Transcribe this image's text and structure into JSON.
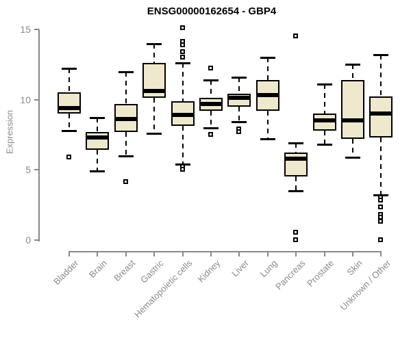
{
  "chart_data": {
    "type": "boxplot",
    "title": "ENSG00000162654 - GBP4",
    "xlabel": "",
    "ylabel": "Expression",
    "ylim": [
      0,
      15
    ],
    "yticks": [
      0,
      5,
      10,
      15
    ],
    "grid": false,
    "legend": "none",
    "box_fill_color": "#EEE8CD",
    "box_border_color": "#000000",
    "axis_color": "#888888",
    "axis_text_color": "#8A8A8A",
    "categories": [
      "Bladder",
      "Brain",
      "Breast",
      "Gastric",
      "Hematopoietic cells",
      "Kidney",
      "Liver",
      "Lung",
      "Pancreas",
      "Prostate",
      "Skin",
      "Unknown / Other"
    ],
    "series": [
      {
        "name": "Bladder",
        "whisker_low": 7.8,
        "q1": 9.0,
        "median": 9.4,
        "q3": 10.5,
        "whisker_high": 12.2,
        "outliers": [
          5.9
        ]
      },
      {
        "name": "Brain",
        "whisker_low": 4.9,
        "q1": 6.4,
        "median": 7.3,
        "q3": 7.7,
        "whisker_high": 8.7,
        "outliers": []
      },
      {
        "name": "Breast",
        "whisker_low": 6.0,
        "q1": 7.7,
        "median": 8.6,
        "q3": 9.7,
        "whisker_high": 12.0,
        "outliers": [
          4.1
        ]
      },
      {
        "name": "Gastric",
        "whisker_low": 7.6,
        "q1": 10.1,
        "median": 10.6,
        "q3": 12.6,
        "whisker_high": 14.0,
        "outliers": []
      },
      {
        "name": "Hematopoietic cells",
        "whisker_low": 5.4,
        "q1": 8.1,
        "median": 8.9,
        "q3": 9.9,
        "whisker_high": 12.6,
        "outliers": [
          15.1,
          14.1,
          13.9,
          13.4,
          13.0,
          5.2,
          5.0
        ]
      },
      {
        "name": "Kidney",
        "whisker_low": 8.0,
        "q1": 9.2,
        "median": 9.7,
        "q3": 10.1,
        "whisker_high": 11.4,
        "outliers": [
          12.2,
          7.5
        ]
      },
      {
        "name": "Liver",
        "whisker_low": 8.4,
        "q1": 9.5,
        "median": 10.1,
        "q3": 10.4,
        "whisker_high": 11.6,
        "outliers": [
          7.9,
          7.7
        ]
      },
      {
        "name": "Lung",
        "whisker_low": 7.2,
        "q1": 9.2,
        "median": 10.3,
        "q3": 11.4,
        "whisker_high": 13.0,
        "outliers": []
      },
      {
        "name": "Pancreas",
        "whisker_low": 3.5,
        "q1": 4.5,
        "median": 5.8,
        "q3": 6.2,
        "whisker_high": 6.9,
        "outliers": [
          14.5,
          0.5,
          0.0
        ]
      },
      {
        "name": "Prostate",
        "whisker_low": 6.8,
        "q1": 7.8,
        "median": 8.5,
        "q3": 9.0,
        "whisker_high": 11.1,
        "outliers": []
      },
      {
        "name": "Skin",
        "whisker_low": 5.9,
        "q1": 7.2,
        "median": 8.5,
        "q3": 11.4,
        "whisker_high": 12.5,
        "outliers": []
      },
      {
        "name": "Unknown / Other",
        "whisker_low": 3.2,
        "q1": 7.3,
        "median": 9.0,
        "q3": 10.2,
        "whisker_high": 13.2,
        "outliers": [
          3.0,
          2.8,
          2.3,
          1.8,
          1.6,
          1.3,
          0.0
        ]
      }
    ]
  }
}
